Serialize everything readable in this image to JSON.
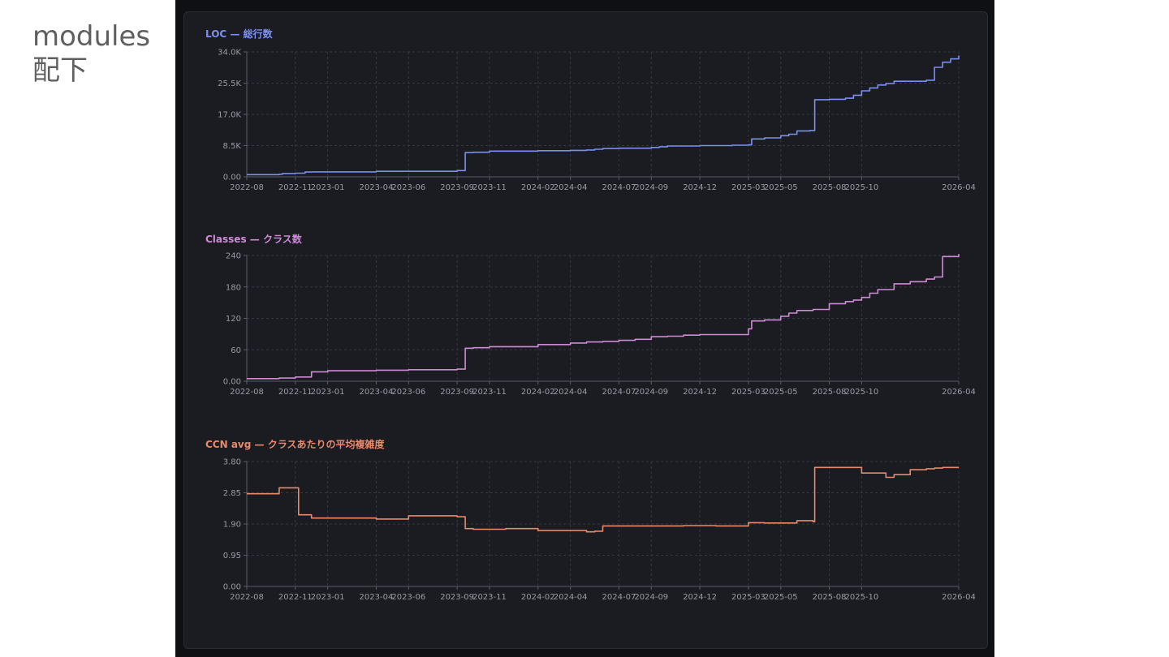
{
  "slide": {
    "title_line1": "modules",
    "title_line2": "配下"
  },
  "chart_data": [
    {
      "type": "line",
      "title": "LOC — 総行数",
      "color": "#7b8ff0",
      "ylim": [
        0,
        34000
      ],
      "ytick_values": [
        0,
        8500,
        17000,
        25500,
        34000
      ],
      "ytick_labels": [
        "0.00",
        "8.5K",
        "17.0K",
        "25.5K",
        "34.0K"
      ],
      "xlim": [
        0,
        44
      ],
      "xtick_values": [
        0,
        3,
        5,
        8,
        10,
        13,
        15,
        18,
        20,
        23,
        25,
        28,
        31,
        33,
        36,
        38,
        44
      ],
      "xtick_labels": [
        "2022-08",
        "2022-11",
        "2023-01",
        "2023-04",
        "2023-06",
        "2023-09",
        "2023-11",
        "2024-02",
        "2024-04",
        "2024-07",
        "2024-09",
        "2024-12",
        "2025-03",
        "2025-05",
        "2025-08",
        "2025-10",
        "2026-04"
      ],
      "x": [
        0,
        2,
        2.2,
        3,
        3.6,
        4,
        8,
        13,
        13.5,
        14,
        15,
        18,
        20,
        21,
        21.5,
        22,
        23,
        25,
        25.5,
        26,
        28,
        30,
        31,
        31.2,
        32,
        33,
        33.5,
        34,
        34.8,
        35,
        35.1,
        36,
        37,
        37.5,
        38,
        38.5,
        39,
        39.5,
        40,
        42,
        42.5,
        43,
        43.5,
        44
      ],
      "y": [
        600,
        700,
        900,
        1000,
        1300,
        1350,
        1500,
        1700,
        6600,
        6700,
        7000,
        7100,
        7200,
        7300,
        7500,
        7700,
        7800,
        8000,
        8200,
        8400,
        8500,
        8600,
        8700,
        10300,
        10600,
        11200,
        11600,
        12500,
        12600,
        12600,
        21000,
        21100,
        21400,
        22200,
        23400,
        24200,
        25000,
        25400,
        26000,
        26300,
        29800,
        31200,
        32100,
        33000
      ]
    },
    {
      "type": "line",
      "title": "Classes — クラス数",
      "color": "#cf8ad6",
      "ylim": [
        0,
        240
      ],
      "ytick_values": [
        0,
        60,
        120,
        180,
        240
      ],
      "ytick_labels": [
        "0.00",
        "60",
        "120",
        "180",
        "240"
      ],
      "xlim": [
        0,
        44
      ],
      "xtick_values": [
        0,
        3,
        5,
        8,
        10,
        13,
        15,
        18,
        20,
        23,
        25,
        28,
        31,
        33,
        36,
        38,
        44
      ],
      "xtick_labels": [
        "2022-08",
        "2022-11",
        "2023-01",
        "2023-04",
        "2023-06",
        "2023-09",
        "2023-11",
        "2024-02",
        "2024-04",
        "2024-07",
        "2024-09",
        "2024-12",
        "2025-03",
        "2025-05",
        "2025-08",
        "2025-10",
        "2026-04"
      ],
      "x": [
        0,
        2,
        3,
        4,
        5,
        8,
        10,
        13,
        13.5,
        14,
        15,
        18,
        20,
        21,
        22,
        23,
        24,
        25,
        26,
        27,
        28,
        29,
        30,
        31,
        31.2,
        32,
        33,
        33.5,
        34,
        35,
        36,
        37,
        37.5,
        38,
        38.5,
        39,
        40,
        41,
        42,
        42.5,
        43,
        44
      ],
      "y": [
        5,
        6,
        8,
        18,
        20,
        21,
        22,
        23,
        63,
        64,
        66,
        70,
        73,
        75,
        76,
        78,
        80,
        85,
        86,
        88,
        89,
        89,
        89,
        100,
        115,
        117,
        124,
        130,
        135,
        137,
        148,
        152,
        155,
        160,
        168,
        175,
        186,
        190,
        195,
        199,
        238,
        243
      ]
    },
    {
      "type": "line",
      "title": "CCN avg — クラスあたりの平均複雑度",
      "color": "#e8896a",
      "ylim": [
        0,
        3.8
      ],
      "ytick_values": [
        0,
        0.95,
        1.9,
        2.85,
        3.8
      ],
      "ytick_labels": [
        "0.00",
        "0.95",
        "1.90",
        "2.85",
        "3.80"
      ],
      "xlim": [
        0,
        44
      ],
      "xtick_values": [
        0,
        3,
        5,
        8,
        10,
        13,
        15,
        18,
        20,
        23,
        25,
        28,
        31,
        33,
        36,
        38,
        44
      ],
      "xtick_labels": [
        "2022-08",
        "2022-11",
        "2023-01",
        "2023-04",
        "2023-06",
        "2023-09",
        "2023-11",
        "2024-02",
        "2024-04",
        "2024-07",
        "2024-09",
        "2024-12",
        "2025-03",
        "2025-05",
        "2025-08",
        "2025-10",
        "2026-04"
      ],
      "x": [
        0,
        1.5,
        2,
        3,
        3.2,
        4,
        6,
        8,
        10,
        12,
        13,
        13.5,
        14,
        15,
        16,
        18,
        20,
        21,
        21.5,
        22,
        23,
        25,
        27,
        29,
        30,
        31,
        32,
        33,
        34,
        35,
        35.1,
        36,
        37,
        38,
        39,
        39.5,
        40,
        41,
        42,
        42.5,
        43,
        44
      ],
      "y": [
        2.82,
        2.82,
        3.0,
        3.0,
        2.18,
        2.08,
        2.08,
        2.05,
        2.15,
        2.15,
        2.12,
        1.76,
        1.74,
        1.74,
        1.76,
        1.7,
        1.7,
        1.66,
        1.68,
        1.84,
        1.84,
        1.84,
        1.85,
        1.84,
        1.84,
        1.94,
        1.93,
        1.93,
        2.0,
        1.97,
        3.62,
        3.62,
        3.62,
        3.45,
        3.45,
        3.32,
        3.4,
        3.55,
        3.58,
        3.6,
        3.62,
        3.62
      ]
    }
  ]
}
